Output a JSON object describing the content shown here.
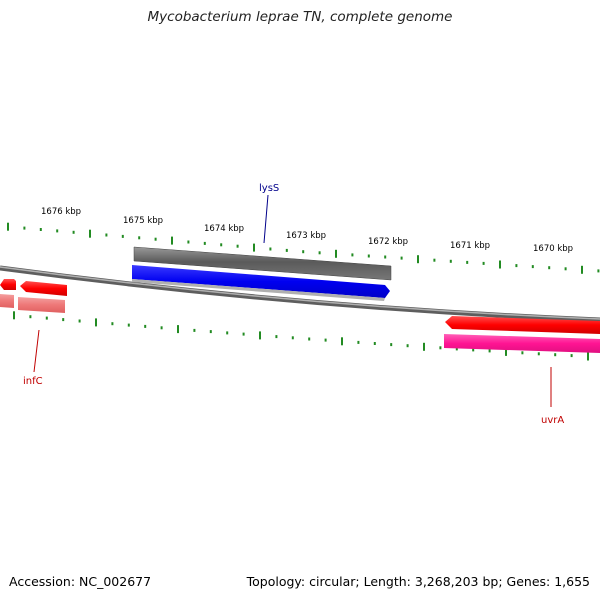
{
  "title": "Mycobacterium leprae TN, complete genome",
  "footer": {
    "accession": "Accession: NC_002677",
    "summary": "Topology: circular; Length: 3,268,203 bp; Genes: 1,655"
  },
  "ticks": [
    "1676 kbp",
    "1675 kbp",
    "1674 kbp",
    "1673 kbp",
    "1672 kbp",
    "1671 kbp",
    "1670 kbp"
  ],
  "gene_labels": {
    "lysS": "lysS",
    "infC": "infC",
    "uvrA": "uvrA"
  },
  "colors": {
    "backbone": "#8c8c8c",
    "tick": "#228b22",
    "gene_blue": "#0000ff",
    "gene_gray": "#666666",
    "gene_red": "#ff0000",
    "gene_pink": "#ff2fa0",
    "gene_light_red": "#f08080",
    "label_blue": "#00008b",
    "label_red": "#c00000"
  }
}
